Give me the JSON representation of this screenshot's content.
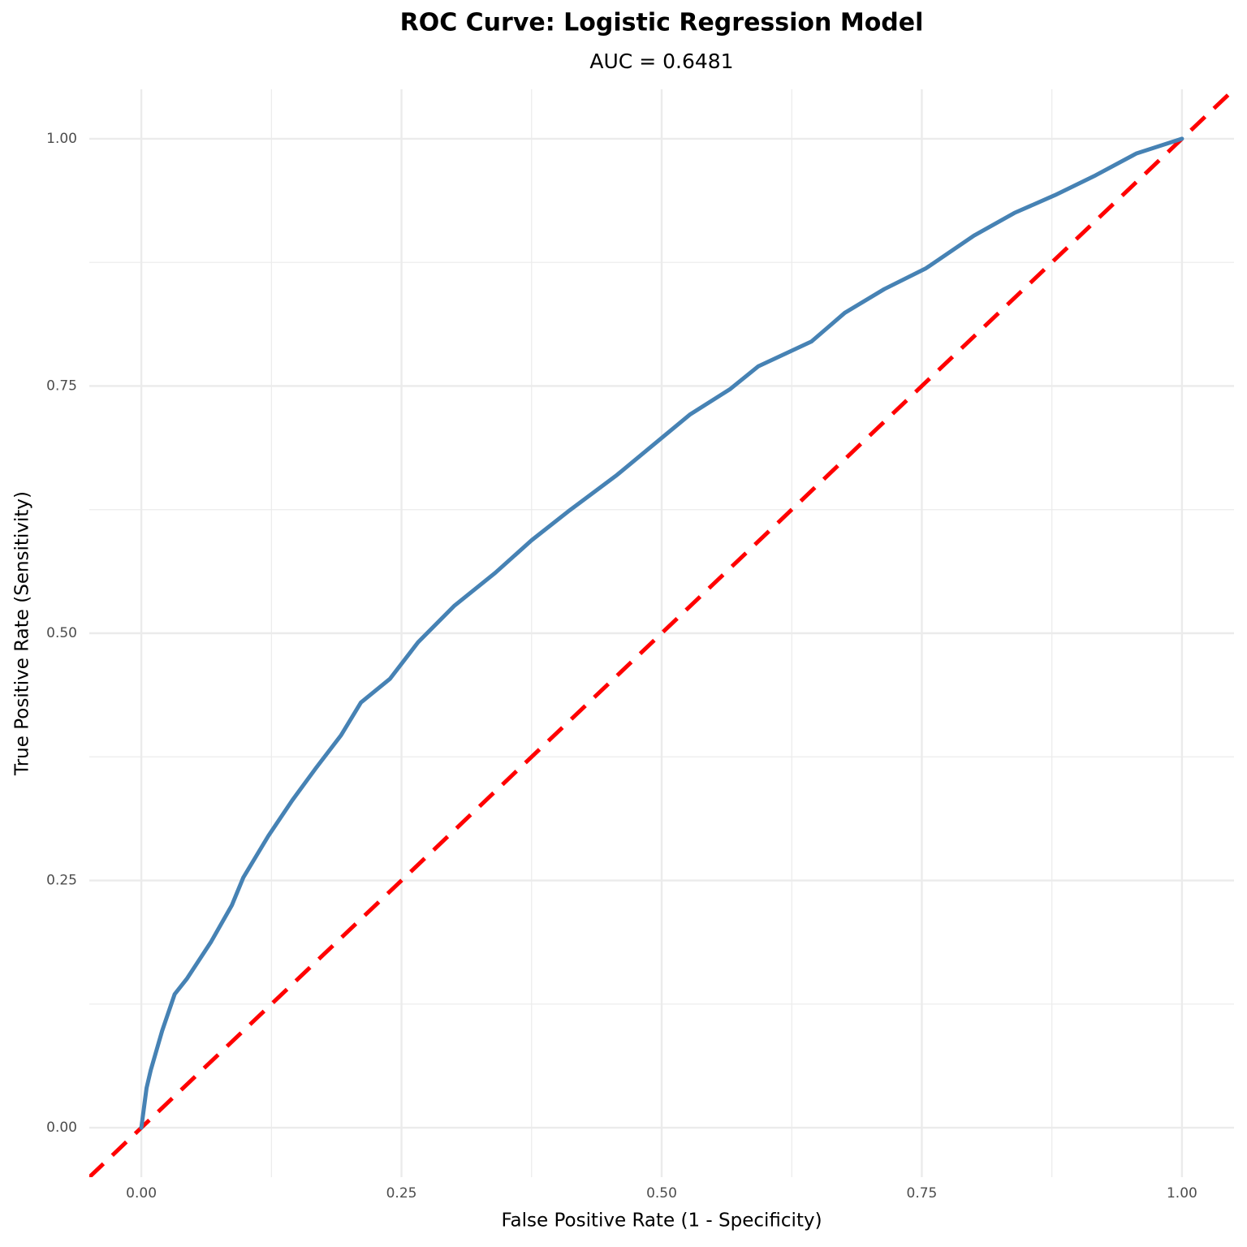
{
  "chart_data": {
    "type": "line",
    "title": "ROC Curve: Logistic Regression Model",
    "subtitle": "AUC = 0.6481",
    "x_label": "False Positive Rate (1 - Specificity)",
    "y_label": "True Positive Rate (Sensitivity)",
    "x": [
      0,
      0.005,
      0.009,
      0.02,
      0.032,
      0.044,
      0.067,
      0.087,
      0.098,
      0.122,
      0.145,
      0.168,
      0.192,
      0.211,
      0.239,
      0.266,
      0.301,
      0.34,
      0.375,
      0.41,
      0.457,
      0.488,
      0.527,
      0.566,
      0.593,
      0.644,
      0.676,
      0.714,
      0.754,
      0.8,
      0.839,
      0.878,
      0.917,
      0.956,
      1
    ],
    "values": [
      0,
      0.04,
      0.058,
      0.098,
      0.135,
      0.151,
      0.188,
      0.225,
      0.253,
      0.295,
      0.331,
      0.364,
      0.397,
      0.43,
      0.454,
      0.491,
      0.528,
      0.561,
      0.594,
      0.623,
      0.66,
      0.687,
      0.721,
      0.747,
      0.77,
      0.795,
      0.824,
      0.848,
      0.869,
      0.902,
      0.925,
      0.943,
      0.963,
      0.985,
      1
    ],
    "color": "#4682b4",
    "reference_line": {
      "slope": 1,
      "intercept": 0,
      "color": "#ff0000",
      "dashed": true
    },
    "xlim": [
      -0.05,
      1.05
    ],
    "ylim": [
      -0.05,
      1.05
    ],
    "xticks": [
      {
        "value": 0,
        "label": "0.00"
      },
      {
        "value": 0.25,
        "label": "0.25"
      },
      {
        "value": 0.5,
        "label": "0.50"
      },
      {
        "value": 0.75,
        "label": "0.75"
      },
      {
        "value": 1,
        "label": "1.00"
      }
    ],
    "yticks": [
      {
        "value": 0,
        "label": "0.00"
      },
      {
        "value": 0.25,
        "label": "0.25"
      },
      {
        "value": 0.5,
        "label": "0.50"
      },
      {
        "value": 0.75,
        "label": "0.75"
      },
      {
        "value": 1,
        "label": "1.00"
      }
    ],
    "x_minor_ticks": [
      0.125,
      0.375,
      0.625,
      0.875
    ],
    "y_minor_ticks": [
      0.125,
      0.375,
      0.625,
      0.875
    ],
    "grid": true
  }
}
